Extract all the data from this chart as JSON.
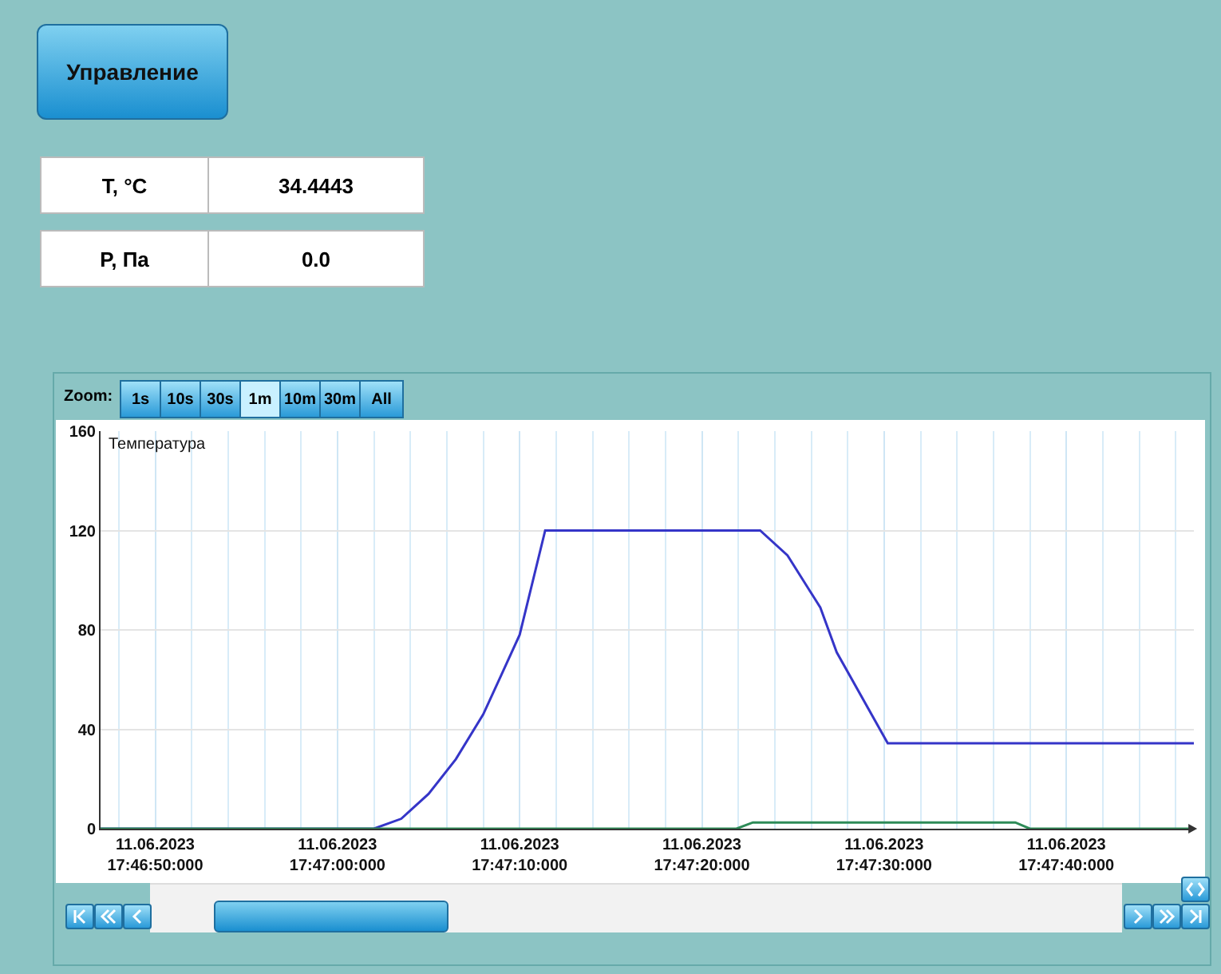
{
  "chart_data": {
    "type": "line",
    "ylabel": "Температура",
    "annotations": [
      "Управление",
      "T, °C",
      "34.4443",
      "P, Па",
      "0.0",
      "Zoom:",
      "1s",
      "10s",
      "30s",
      "1m",
      "10m",
      "30m",
      "All"
    ],
    "x": [
      "2023-06-11T17:46:47",
      "2023-06-11T17:47:02",
      "2023-06-11T17:47:03.5",
      "2023-06-11T17:47:05",
      "2023-06-11T17:47:06.5",
      "2023-06-11T17:47:08",
      "2023-06-11T17:47:09",
      "2023-06-11T17:47:10",
      "2023-06-11T17:47:11.4",
      "2023-06-11T17:47:23.2",
      "2023-06-11T17:47:24.7",
      "2023-06-11T17:47:26.5",
      "2023-06-11T17:47:27.4",
      "2023-06-11T17:47:30.2",
      "2023-06-11T17:47:47"
    ],
    "series": [
      {
        "color": "#3535c8",
        "values": [
          0,
          0,
          4,
          14,
          28,
          46,
          62,
          78,
          120,
          120,
          110,
          89,
          71,
          34.4,
          34.4
        ]
      },
      {
        "color": "#2e8b57",
        "x": [
          "2023-06-11T17:46:47",
          "2023-06-11T17:47:21.9",
          "2023-06-11T17:47:22.8",
          "2023-06-11T17:47:37.2",
          "2023-06-11T17:47:38",
          "2023-06-11T17:47:47"
        ],
        "values": [
          0,
          0,
          2.5,
          2.5,
          0,
          0
        ]
      }
    ],
    "xlim": [
      "2023-06-11T17:46:47",
      "2023-06-11T17:47:47"
    ],
    "xticks": [
      {
        "value": "2023-06-11T17:46:50",
        "label": "11.06.2023\n17:46:50:000"
      },
      {
        "value": "2023-06-11T17:47:00",
        "label": "11.06.2023\n17:47:00:000"
      },
      {
        "value": "2023-06-11T17:47:10",
        "label": "11.06.2023\n17:47:10:000"
      },
      {
        "value": "2023-06-11T17:47:20",
        "label": "11.06.2023\n17:47:20:000"
      },
      {
        "value": "2023-06-11T17:47:30",
        "label": "11.06.2023\n17:47:30:000"
      },
      {
        "value": "2023-06-11T17:47:40",
        "label": "11.06.2023\n17:47:40:000"
      }
    ],
    "ylim": [
      0,
      160
    ],
    "yticks": [
      0,
      40,
      80,
      120,
      160
    ],
    "grid": true,
    "marker": "none",
    "line_style": "solid"
  }
}
